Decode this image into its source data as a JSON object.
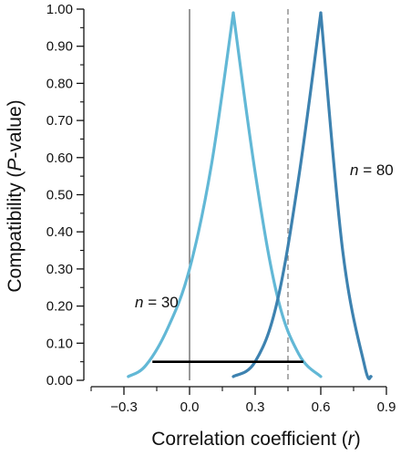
{
  "chart_data": {
    "type": "line",
    "xlabel": "Correlation coefficient (r)",
    "ylabel": "Compatibility (P-value)",
    "xlim": [
      -0.45,
      1.0
    ],
    "ylim": [
      0.0,
      1.0
    ],
    "x_ticks": [
      -0.3,
      0.0,
      0.3,
      0.6,
      0.9
    ],
    "x_tick_labels": [
      "−0.3",
      "0.0",
      "0.3",
      "0.6",
      "0.9"
    ],
    "y_ticks": [
      0.0,
      0.1,
      0.2,
      0.3,
      0.4,
      0.5,
      0.6,
      0.7,
      0.8,
      0.9,
      1.0
    ],
    "y_tick_labels": [
      "0.00",
      "0.10",
      "0.20",
      "0.30",
      "0.40",
      "0.50",
      "0.60",
      "0.70",
      "0.80",
      "0.90",
      "1.00"
    ],
    "reference_lines": [
      {
        "axis": "x",
        "value": 0.0,
        "style": "solid",
        "color": "#555555"
      },
      {
        "axis": "x",
        "value": 0.45,
        "style": "dashed",
        "color": "#777777"
      }
    ],
    "interval": {
      "x_start": -0.17,
      "x_end": 0.52,
      "y": 0.05,
      "color": "#000000"
    },
    "series": [
      {
        "label_prefix": "n",
        "label_suffix": " = 30",
        "color": "#62b8d6",
        "x": [
          -0.28,
          -0.2,
          -0.1,
          0.0,
          0.1,
          0.2,
          0.3,
          0.4,
          0.5,
          0.6
        ],
        "y": [
          0.01,
          0.04,
          0.14,
          0.3,
          0.58,
          0.99,
          0.56,
          0.23,
          0.07,
          0.01
        ]
      },
      {
        "label_prefix": "n",
        "label_suffix": " = 80",
        "color": "#3d82b0",
        "x": [
          0.2,
          0.3,
          0.4,
          0.5,
          0.6,
          0.7,
          0.8,
          0.83
        ],
        "y": [
          0.01,
          0.05,
          0.21,
          0.55,
          0.99,
          0.35,
          0.04,
          0.01
        ]
      }
    ]
  }
}
